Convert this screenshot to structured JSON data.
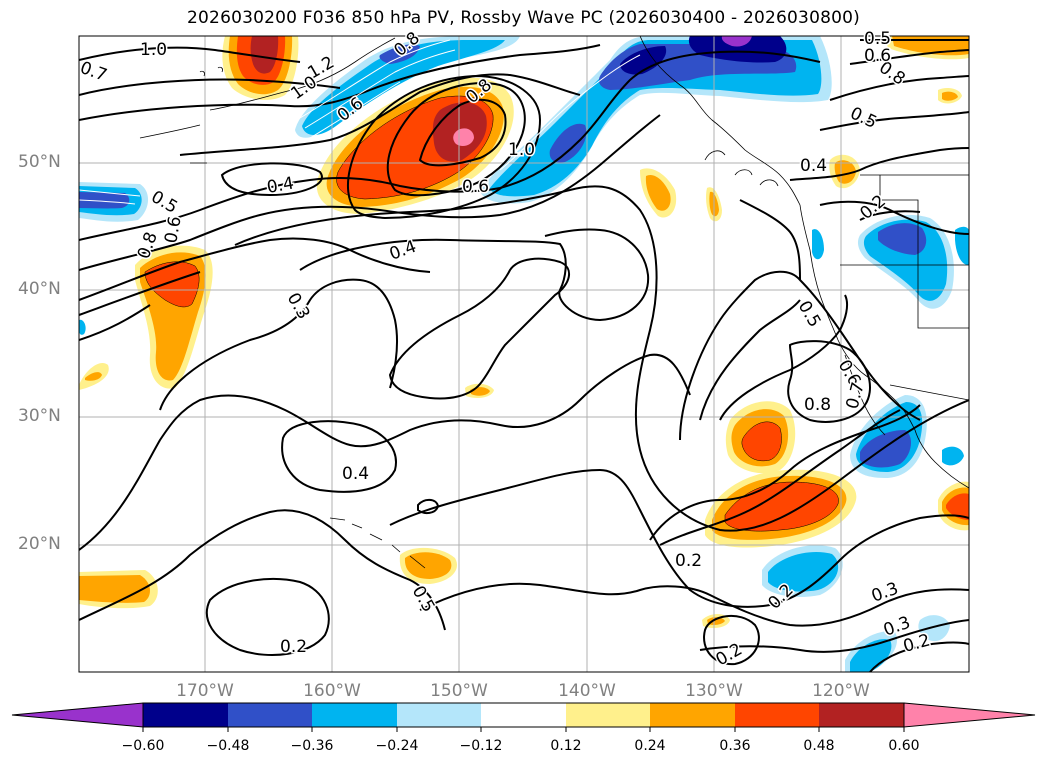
{
  "title": "2026030200 F036 850 hPa PV, Rossby Wave PC (2026030400 - 2026030800)",
  "lat_labels": [
    "50°N",
    "40°N",
    "30°N",
    "20°N"
  ],
  "lon_labels": [
    "170°W",
    "160°W",
    "150°W",
    "140°W",
    "130°W",
    "120°W"
  ],
  "contour_labels": [
    "1.0",
    "0.7",
    "1.2",
    "1.0",
    "0.8",
    "0.6",
    "0.8",
    "1.0",
    "0.6",
    "0.4",
    "0.4",
    "0.5",
    "0.8",
    "0.6",
    "0.3",
    "0.4",
    "0.2",
    "0.2",
    "0.5",
    "0.2",
    "0.5",
    "0.6",
    "0.8",
    "0.7",
    "0.8",
    "0.5",
    "0.6",
    "0.5",
    "0.4",
    "0.2",
    "0.3",
    "0.3",
    "0.2",
    "0.2"
  ],
  "colorbar": {
    "ticks": [
      "−0.60",
      "−0.48",
      "−0.36",
      "−0.24",
      "−0.12",
      "0.12",
      "0.24",
      "0.36",
      "0.48",
      "0.60"
    ],
    "colors": [
      "#9932cc",
      "#00008b",
      "#3050c8",
      "#00b4f0",
      "#b4e6fa",
      "#ffffff",
      "#fff08c",
      "#ffa500",
      "#ff4500",
      "#b22222",
      "#ff82aa"
    ]
  }
}
